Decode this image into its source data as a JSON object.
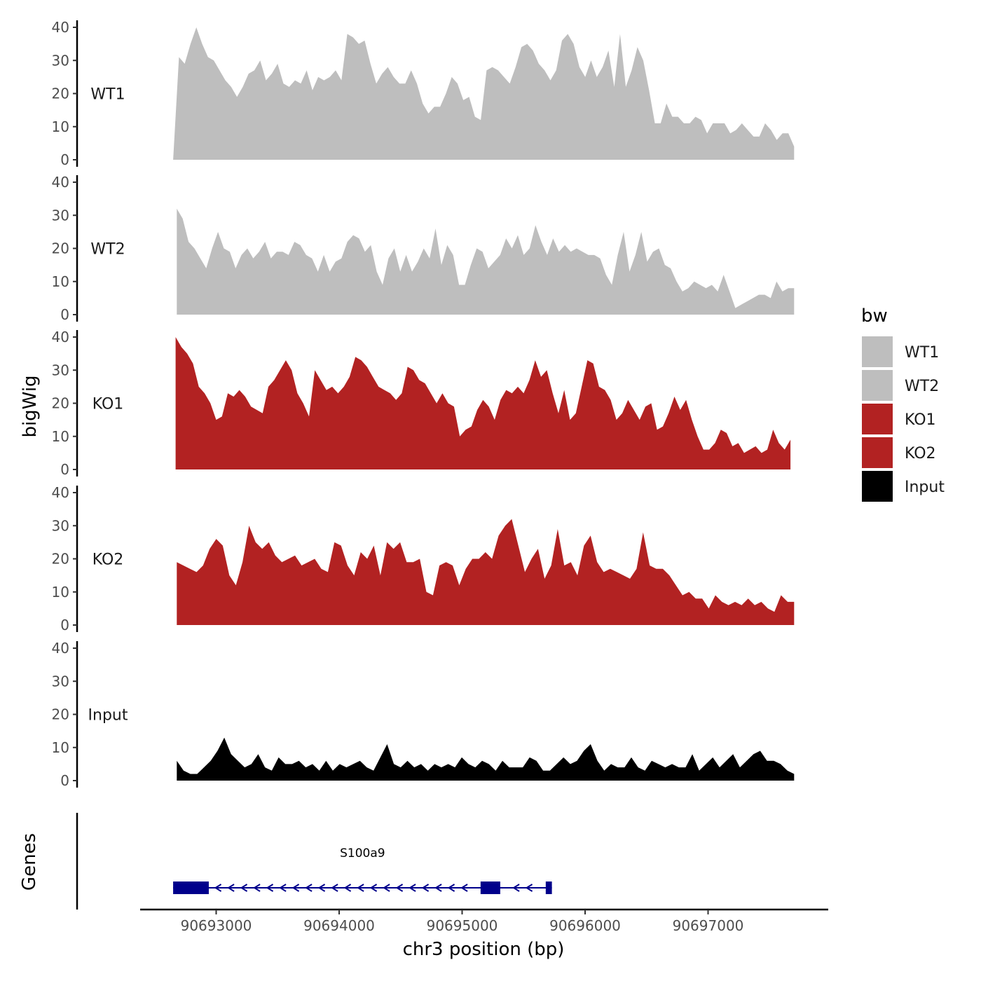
{
  "chart_data": {
    "type": "area",
    "title": "",
    "chromosome": "chr3",
    "xlabel": "chr3 position (bp)",
    "ylabel": "bigWig",
    "xlim": [
      90692400,
      90697800
    ],
    "x_ticks": [
      90693000,
      90694000,
      90695000,
      90696000,
      90697000
    ],
    "x_tick_labels": [
      "90693000",
      "90694000",
      "90695000",
      "90696000",
      "90697000"
    ],
    "ylim": [
      0,
      40
    ],
    "y_ticks": [
      0,
      10,
      20,
      30,
      40
    ],
    "y_tick_labels": [
      "0",
      "10",
      "20",
      "30",
      "40"
    ],
    "legend": {
      "title": "bw",
      "position": "right",
      "entries": [
        {
          "label": "WT1",
          "color": "#bebebe"
        },
        {
          "label": "WT2",
          "color": "#bebebe"
        },
        {
          "label": "KO1",
          "color": "#b22222"
        },
        {
          "label": "KO2",
          "color": "#b22222"
        },
        {
          "label": "Input",
          "color": "#000000"
        }
      ]
    },
    "series": [
      {
        "name": "WT1",
        "color": "#bebebe",
        "x_start": 90692650,
        "x_end": 90697700,
        "values": [
          0,
          31,
          29,
          35,
          40,
          35,
          31,
          30,
          27,
          24,
          22,
          19,
          22,
          26,
          27,
          30,
          24,
          26,
          29,
          23,
          22,
          24,
          23,
          27,
          21,
          25,
          24,
          25,
          27,
          24,
          38,
          37,
          35,
          36,
          29,
          23,
          26,
          28,
          25,
          23,
          23,
          27,
          23,
          17,
          14,
          16,
          16,
          20,
          25,
          23,
          18,
          19,
          13,
          12,
          27,
          28,
          27,
          25,
          23,
          28,
          34,
          35,
          33,
          29,
          27,
          24,
          27,
          36,
          38,
          35,
          28,
          25,
          30,
          25,
          28,
          33,
          22,
          38,
          22,
          27,
          34,
          30,
          21,
          11,
          11,
          17,
          13,
          13,
          11,
          11,
          13,
          12,
          8,
          11,
          11,
          11,
          8,
          9,
          11,
          9,
          7,
          7,
          11,
          9,
          6,
          8,
          8,
          4
        ]
      },
      {
        "name": "WT2",
        "color": "#bebebe",
        "x_start": 90692680,
        "x_end": 90697700,
        "values": [
          32,
          29,
          22,
          20,
          17,
          14,
          20,
          25,
          20,
          19,
          14,
          18,
          20,
          17,
          19,
          22,
          17,
          19,
          19,
          18,
          22,
          21,
          18,
          17,
          13,
          18,
          13,
          16,
          17,
          22,
          24,
          23,
          19,
          21,
          13,
          9,
          17,
          20,
          13,
          18,
          13,
          16,
          20,
          17,
          26,
          15,
          21,
          18,
          9,
          9,
          15,
          20,
          19,
          14,
          16,
          18,
          23,
          20,
          24,
          18,
          20,
          27,
          22,
          18,
          23,
          19,
          21,
          19,
          20,
          19,
          18,
          18,
          17,
          12,
          9,
          18,
          25,
          13,
          18,
          25,
          16,
          19,
          20,
          15,
          14,
          10,
          7,
          8,
          10,
          9,
          8,
          9,
          7,
          12,
          7,
          2,
          3,
          4,
          5,
          6,
          6,
          5,
          10,
          7,
          8,
          8
        ]
      },
      {
        "name": "KO1",
        "color": "#b22222",
        "x_start": 90692670,
        "x_end": 90697670,
        "values": [
          40,
          37,
          35,
          32,
          25,
          23,
          20,
          15,
          16,
          23,
          22,
          24,
          22,
          19,
          18,
          17,
          25,
          27,
          30,
          33,
          30,
          23,
          20,
          16,
          30,
          27,
          24,
          25,
          23,
          25,
          28,
          34,
          33,
          31,
          28,
          25,
          24,
          23,
          21,
          23,
          31,
          30,
          27,
          26,
          23,
          20,
          23,
          20,
          19,
          10,
          12,
          13,
          18,
          21,
          19,
          15,
          21,
          24,
          23,
          25,
          23,
          27,
          33,
          28,
          30,
          23,
          17,
          24,
          15,
          17,
          25,
          33,
          32,
          25,
          24,
          21,
          15,
          17,
          21,
          18,
          15,
          19,
          20,
          12,
          13,
          17,
          22,
          18,
          21,
          15,
          10,
          6,
          6,
          8,
          12,
          11,
          7,
          8,
          5,
          6,
          7,
          5,
          6,
          12,
          8,
          6,
          9
        ]
      },
      {
        "name": "KO2",
        "color": "#b22222",
        "x_start": 90692680,
        "x_end": 90697700,
        "values": [
          19,
          18,
          17,
          16,
          18,
          23,
          26,
          24,
          15,
          12,
          19,
          30,
          25,
          23,
          25,
          21,
          19,
          20,
          21,
          18,
          19,
          20,
          17,
          16,
          25,
          24,
          18,
          15,
          22,
          20,
          24,
          15,
          25,
          23,
          25,
          19,
          19,
          20,
          10,
          9,
          18,
          19,
          18,
          12,
          17,
          20,
          20,
          22,
          20,
          27,
          30,
          32,
          24,
          16,
          20,
          23,
          14,
          18,
          29,
          18,
          19,
          15,
          24,
          27,
          19,
          16,
          17,
          16,
          15,
          14,
          17,
          28,
          18,
          17,
          17,
          15,
          12,
          9,
          10,
          8,
          8,
          5,
          9,
          7,
          6,
          7,
          6,
          8,
          6,
          7,
          5,
          4,
          9,
          7,
          7
        ]
      },
      {
        "name": "Input",
        "color": "#000000",
        "x_start": 90692680,
        "x_end": 90697700,
        "values": [
          6,
          3,
          2,
          2,
          4,
          6,
          9,
          13,
          8,
          6,
          4,
          5,
          8,
          4,
          3,
          7,
          5,
          5,
          6,
          4,
          5,
          3,
          6,
          3,
          5,
          4,
          5,
          6,
          4,
          3,
          7,
          11,
          5,
          4,
          6,
          4,
          5,
          3,
          5,
          4,
          5,
          4,
          7,
          5,
          4,
          6,
          5,
          3,
          6,
          4,
          4,
          4,
          7,
          6,
          3,
          3,
          5,
          7,
          5,
          6,
          9,
          11,
          6,
          3,
          5,
          4,
          4,
          7,
          4,
          3,
          6,
          5,
          4,
          5,
          4,
          4,
          8,
          3,
          5,
          7,
          4,
          6,
          8,
          4,
          6,
          8,
          9,
          6,
          6,
          5,
          3,
          2
        ]
      }
    ],
    "genes": {
      "track_label": "Genes",
      "items": [
        {
          "name": "S100a9",
          "strand": "-",
          "color": "#00008b",
          "start": 90692650,
          "end": 90695730,
          "exons": [
            [
              90692650,
              90692940
            ],
            [
              90695150,
              90695310
            ],
            [
              90695680,
              90695730
            ]
          ]
        }
      ]
    }
  }
}
